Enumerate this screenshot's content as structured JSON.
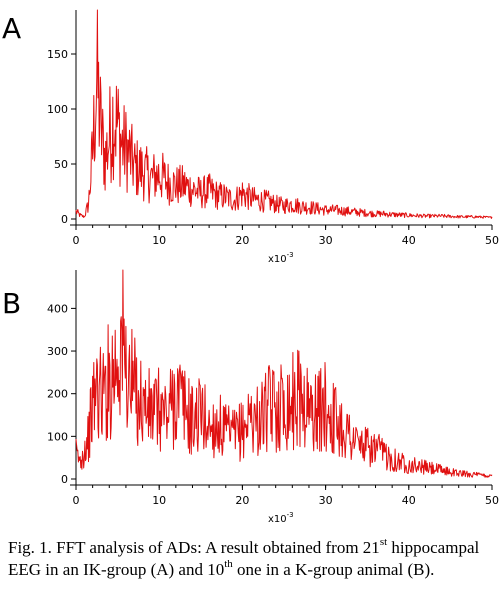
{
  "chart_data": [
    {
      "type": "line",
      "panel_label": "A",
      "x_multiplier": "x10",
      "x_multiplier_exp": "-3",
      "xlim": [
        0,
        50
      ],
      "ylim": [
        0,
        190
      ],
      "x_ticks": [
        "0",
        "10",
        "20",
        "30",
        "40",
        "50"
      ],
      "y_ticks": [
        "0",
        "50",
        "100",
        "150"
      ],
      "color": "#e01010",
      "series": [
        {
          "x": [
            0,
            0.5,
            1,
            1.5,
            2,
            2.5,
            3,
            3.5,
            4,
            4.5,
            5,
            5.5,
            6,
            6.5,
            7,
            8,
            9,
            10,
            11,
            12,
            13,
            14,
            15,
            16,
            17,
            18,
            19,
            20,
            21,
            22,
            23,
            24,
            25,
            26,
            27,
            28,
            29,
            30,
            31,
            32,
            33,
            34,
            35,
            36,
            37,
            38,
            40,
            42,
            44,
            46,
            48,
            50
          ],
          "y": [
            10,
            5,
            3,
            20,
            90,
            190,
            120,
            80,
            110,
            140,
            125,
            100,
            95,
            85,
            70,
            65,
            55,
            60,
            50,
            45,
            45,
            40,
            35,
            38,
            32,
            30,
            25,
            35,
            28,
            25,
            24,
            20,
            18,
            20,
            17,
            16,
            14,
            12,
            12,
            11,
            10,
            9,
            8,
            7,
            7,
            6,
            5,
            4,
            4,
            3,
            3,
            2
          ]
        }
      ]
    },
    {
      "type": "line",
      "panel_label": "B",
      "x_multiplier": "x10",
      "x_multiplier_exp": "-3",
      "xlim": [
        0,
        50
      ],
      "ylim": [
        0,
        490
      ],
      "x_ticks": [
        "0",
        "10",
        "20",
        "30",
        "40",
        "50"
      ],
      "y_ticks": [
        "0",
        "100",
        "200",
        "300",
        "400"
      ],
      "color": "#e01010",
      "series": [
        {
          "x": [
            0,
            0.5,
            1,
            1.5,
            2,
            2.5,
            3,
            3.5,
            4,
            4.5,
            5,
            5.5,
            6,
            6.5,
            7,
            8,
            9,
            10,
            11,
            12,
            13,
            14,
            15,
            16,
            17,
            18,
            19,
            20,
            21,
            22,
            23,
            24,
            25,
            26,
            27,
            28,
            29,
            30,
            31,
            32,
            33,
            34,
            35,
            36,
            37,
            38,
            39,
            40,
            42,
            44,
            46,
            48,
            50
          ],
          "y": [
            90,
            60,
            100,
            150,
            250,
            320,
            290,
            300,
            350,
            380,
            420,
            490,
            380,
            330,
            310,
            260,
            230,
            240,
            220,
            300,
            250,
            200,
            230,
            180,
            190,
            160,
            150,
            170,
            220,
            200,
            240,
            250,
            260,
            270,
            290,
            240,
            230,
            250,
            210,
            180,
            150,
            120,
            110,
            100,
            90,
            70,
            60,
            50,
            40,
            30,
            20,
            15,
            10
          ]
        }
      ]
    }
  ],
  "caption": {
    "part1": "Fig. 1.  FFT analysis of ADs: A result obtained from 21",
    "sup1": "st",
    "part2": " hippocampal EEG in an IK-group (A) and 10",
    "sup2": "th",
    "part3": " one in a K-group animal (B)."
  }
}
